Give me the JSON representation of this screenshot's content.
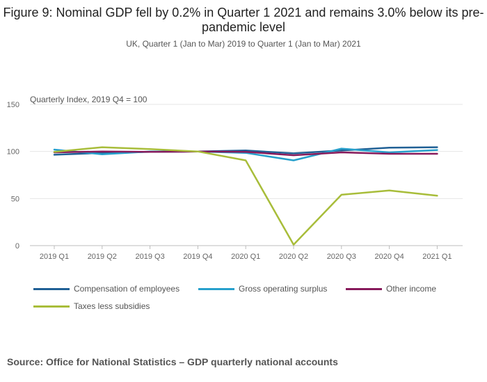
{
  "title": "Figure 9: Nominal GDP fell by 0.2% in Quarter 1 2021 and remains 3.0% below its pre-pandemic level",
  "subtitle": "UK, Quarter 1 (Jan to Mar) 2019 to Quarter 1 (Jan to Mar) 2021",
  "source": "Source: Office for National Statistics – GDP quarterly national accounts",
  "chart_data": {
    "type": "line",
    "ylabel": "Quarterly Index, 2019 Q4 = 100",
    "xlabel": "",
    "ylim": [
      0,
      150
    ],
    "yticks": [
      0,
      50,
      100,
      150
    ],
    "grid": true,
    "legend_position": "bottom",
    "categories": [
      "2019 Q1",
      "2019 Q2",
      "2019 Q3",
      "2019 Q4",
      "2020 Q1",
      "2020 Q2",
      "2020 Q3",
      "2020 Q4",
      "2021 Q1"
    ],
    "series": [
      {
        "name": "Compensation of employees",
        "color": "#206095",
        "values": [
          96.5,
          98.5,
          99.5,
          100,
          101,
          98,
          101,
          104,
          104.5
        ]
      },
      {
        "name": "Gross operating surplus",
        "color": "#27a0cc",
        "values": [
          102,
          97,
          100,
          100,
          98.5,
          90.5,
          103,
          99,
          101.5
        ]
      },
      {
        "name": "Other income",
        "color": "#871a5b",
        "values": [
          99,
          100,
          99.5,
          100,
          99.5,
          96,
          99,
          97.5,
          97.5
        ]
      },
      {
        "name": "Taxes less subsidies",
        "color": "#a8bd3a",
        "values": [
          99.5,
          104.5,
          102.5,
          100,
          90.5,
          1,
          54,
          58.5,
          53
        ]
      }
    ]
  }
}
